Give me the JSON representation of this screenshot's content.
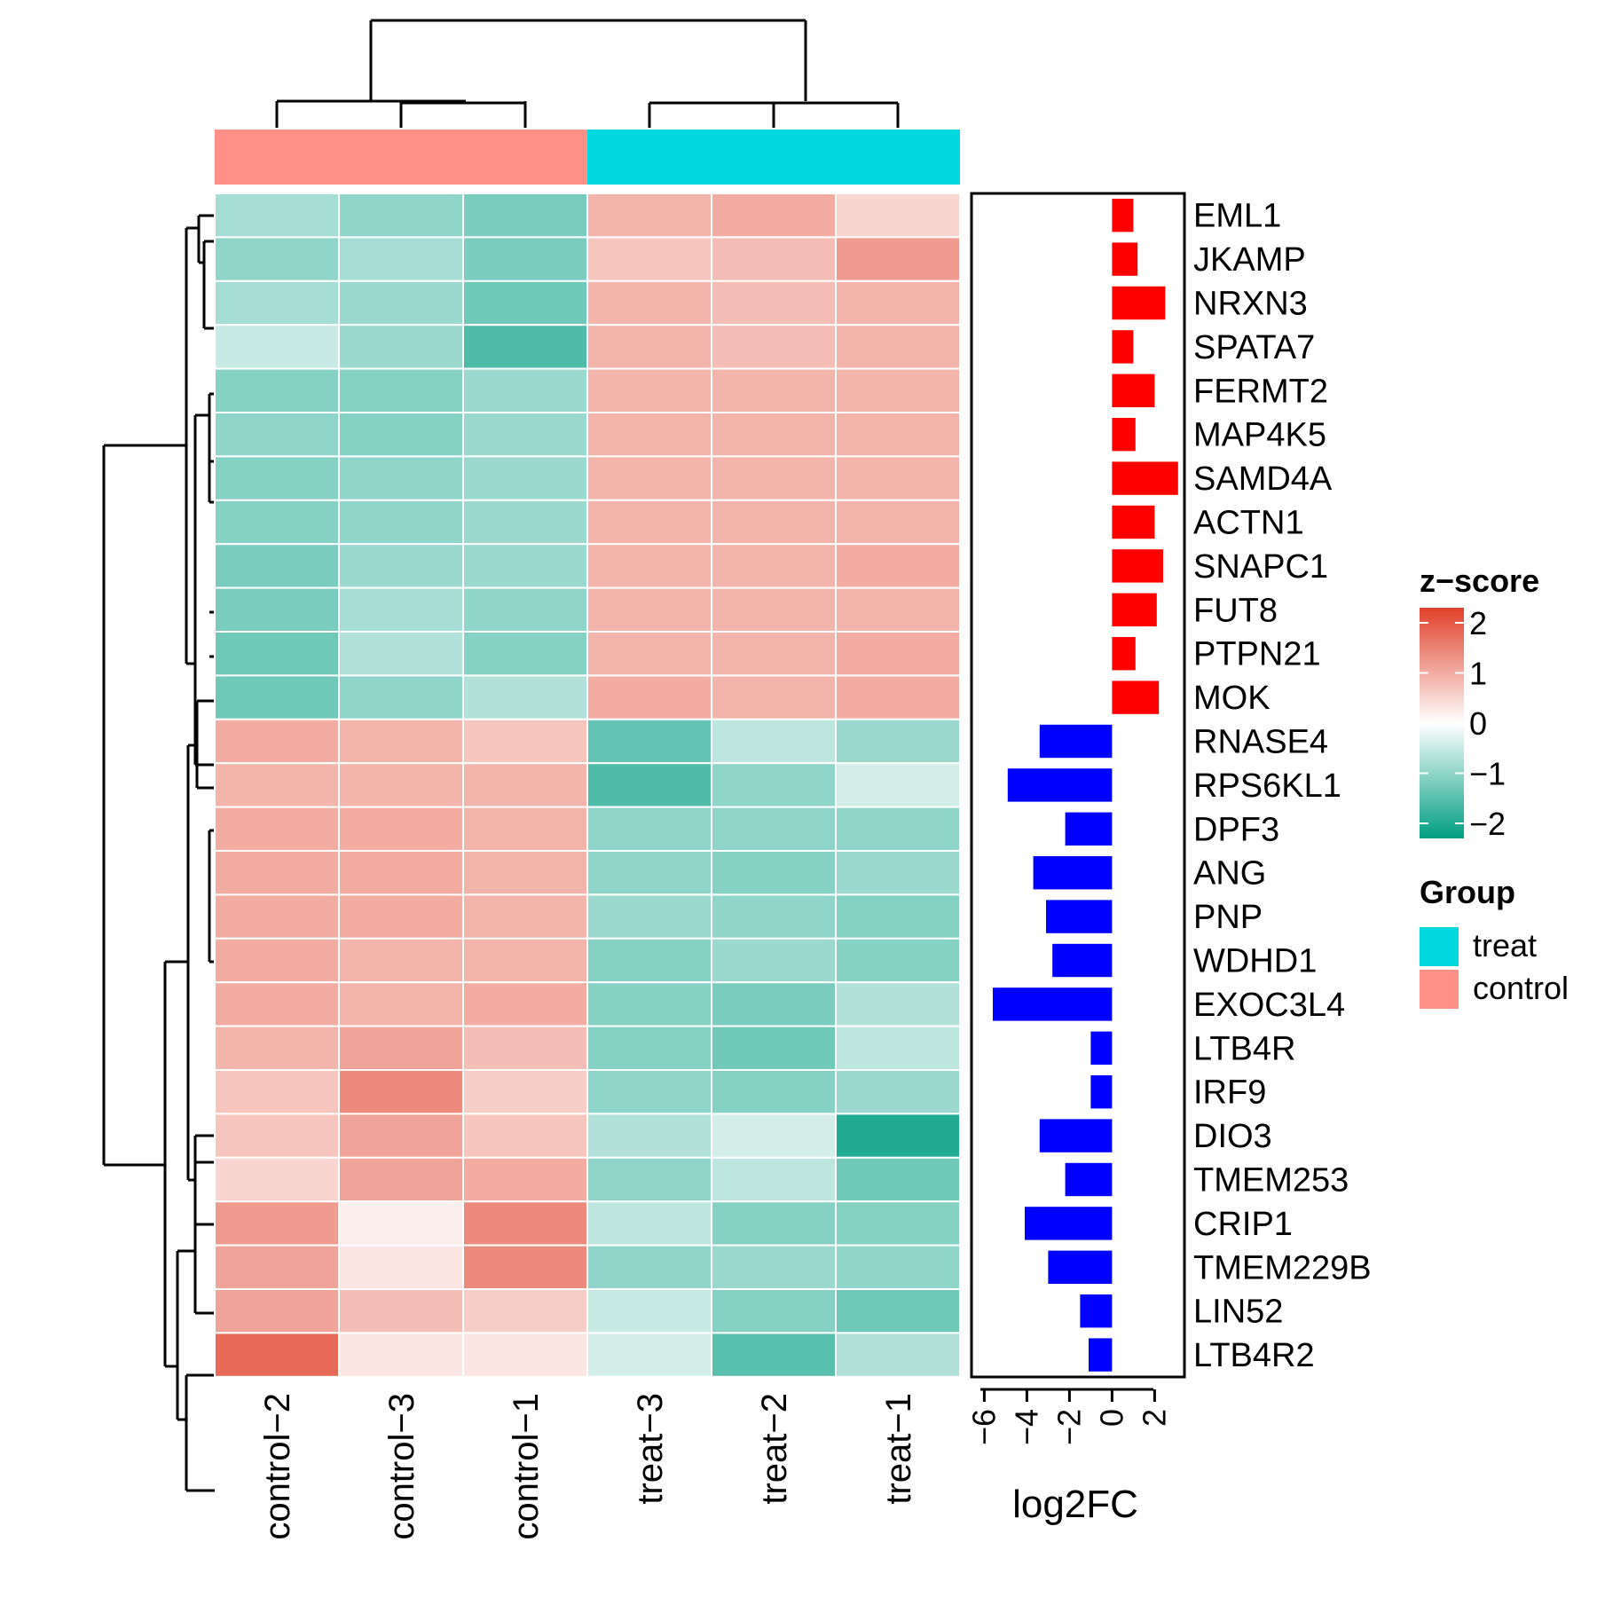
{
  "chart_data": {
    "type": "heatmap",
    "columns": [
      "control−2",
      "control−3",
      "control−1",
      "treat−3",
      "treat−2",
      "treat−1"
    ],
    "column_groups": [
      "control",
      "control",
      "control",
      "treat",
      "treat",
      "treat"
    ],
    "rows": [
      "EML1",
      "JKAMP",
      "NRXN3",
      "SPATA7",
      "FERMT2",
      "MAP4K5",
      "SAMD4A",
      "ACTN1",
      "SNAPC1",
      "FUT8",
      "PTPN21",
      "MOK",
      "RNASE4",
      "RPS6KL1",
      "DPF3",
      "ANG",
      "PNP",
      "WDHD1",
      "EXOC3L4",
      "LTB4R",
      "IRF9",
      "DIO3",
      "TMEM253",
      "CRIP1",
      "TMEM229B",
      "LIN52",
      "LTB4R2"
    ],
    "z_scores": [
      [
        -0.8,
        -1.0,
        -1.2,
        0.9,
        1.0,
        0.5
      ],
      [
        -1.0,
        -0.8,
        -1.2,
        0.7,
        0.8,
        1.2
      ],
      [
        -0.8,
        -0.9,
        -1.3,
        0.9,
        0.8,
        0.9
      ],
      [
        -0.5,
        -0.9,
        -1.6,
        0.9,
        0.8,
        0.9
      ],
      [
        -1.1,
        -1.1,
        -0.9,
        0.9,
        0.9,
        0.9
      ],
      [
        -1.0,
        -1.1,
        -0.9,
        0.9,
        0.9,
        0.9
      ],
      [
        -1.1,
        -1.0,
        -0.9,
        0.9,
        0.9,
        0.9
      ],
      [
        -1.1,
        -1.0,
        -0.9,
        0.9,
        0.9,
        0.9
      ],
      [
        -1.2,
        -0.9,
        -0.9,
        0.9,
        0.9,
        1.0
      ],
      [
        -1.2,
        -0.8,
        -1.0,
        0.9,
        0.9,
        0.9
      ],
      [
        -1.3,
        -0.7,
        -1.1,
        0.9,
        0.9,
        1.0
      ],
      [
        -1.3,
        -1.0,
        -0.7,
        1.0,
        0.9,
        1.0
      ],
      [
        1.0,
        0.9,
        0.7,
        -1.4,
        -0.6,
        -0.9
      ],
      [
        0.9,
        0.9,
        0.9,
        -1.6,
        -1.0,
        -0.4
      ],
      [
        1.0,
        1.0,
        0.9,
        -1.0,
        -1.0,
        -1.0
      ],
      [
        1.0,
        1.0,
        0.9,
        -1.0,
        -1.1,
        -0.9
      ],
      [
        1.0,
        1.0,
        0.9,
        -0.9,
        -1.0,
        -1.1
      ],
      [
        1.0,
        0.9,
        0.9,
        -1.1,
        -0.9,
        -1.1
      ],
      [
        1.0,
        0.9,
        1.0,
        -1.1,
        -1.2,
        -0.7
      ],
      [
        0.9,
        1.1,
        0.8,
        -1.1,
        -1.3,
        -0.6
      ],
      [
        0.7,
        1.4,
        0.6,
        -1.0,
        -1.1,
        -0.9
      ],
      [
        0.7,
        1.1,
        0.7,
        -0.7,
        -0.4,
        -2.0
      ],
      [
        0.5,
        1.1,
        1.0,
        -1.0,
        -0.6,
        -1.3
      ],
      [
        1.2,
        0.2,
        1.4,
        -0.6,
        -1.1,
        -1.1
      ],
      [
        1.1,
        0.3,
        1.4,
        -1.0,
        -0.9,
        -1.0
      ],
      [
        1.1,
        0.8,
        0.6,
        -0.5,
        -1.1,
        -1.3
      ],
      [
        1.8,
        0.3,
        0.3,
        -0.4,
        -1.5,
        -0.7
      ]
    ],
    "log2fc": [
      1.0,
      1.2,
      2.5,
      1.0,
      2.0,
      1.1,
      3.1,
      2.0,
      2.4,
      2.1,
      1.1,
      2.2,
      -3.4,
      -4.9,
      -2.2,
      -3.7,
      -3.1,
      -2.8,
      -5.6,
      -1.0,
      -1.0,
      -3.4,
      -2.2,
      -4.1,
      -3.0,
      -1.5,
      -1.1
    ],
    "log2fc_axis": {
      "title": "log2FC",
      "ticks": [
        -6,
        -4,
        -2,
        0,
        2
      ],
      "tick_labels": [
        "−6",
        "−4",
        "−2",
        "0",
        "2"
      ],
      "xlim": [
        -6.6,
        3.4
      ]
    },
    "colorbar": {
      "title": "z−score",
      "range": [
        -2.3,
        2.3
      ],
      "ticks": [
        2,
        1,
        0,
        -1,
        -2
      ],
      "tick_labels": [
        "2",
        "1",
        "0",
        "−1",
        "−2"
      ],
      "low_color": "#009E82",
      "mid_color": "#FFFFFF",
      "high_color": "#E0402A"
    },
    "groups": [
      {
        "name": "treat",
        "color": "#00D8E0"
      },
      {
        "name": "control",
        "color": "#FF9088"
      }
    ],
    "group_legend_title": "Group",
    "bar_colors": {
      "up": "#FF0000",
      "down": "#0000FF"
    }
  }
}
